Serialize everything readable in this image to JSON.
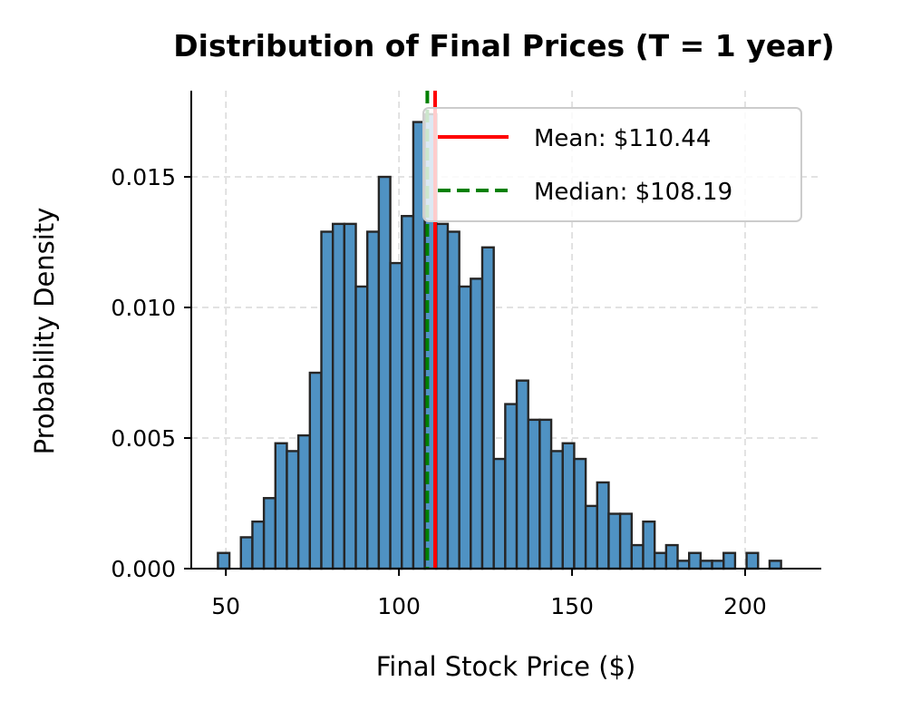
{
  "chart_data": {
    "type": "histogram",
    "title": "Distribution of Final Prices (T = 1 year)",
    "xlabel": "Final Stock Price ($)",
    "ylabel": "Probability Density",
    "xlim": [
      40,
      222
    ],
    "ylim": [
      0,
      0.0183
    ],
    "xticks": [
      50,
      100,
      150,
      200
    ],
    "xtick_labels": [
      "50",
      "100",
      "150",
      "200"
    ],
    "yticks": [
      0,
      0.005,
      0.01,
      0.015
    ],
    "ytick_labels": [
      "0.000",
      "0.005",
      "0.010",
      "0.015"
    ],
    "grid": true,
    "legend_position": "upper right",
    "bar_color": "#1f77b4",
    "bins": {
      "start": 47.7,
      "width": 3.32,
      "values": [
        0.0006,
        0.0,
        0.0012,
        0.0018,
        0.0027,
        0.0048,
        0.0045,
        0.0051,
        0.0075,
        0.0129,
        0.0132,
        0.0132,
        0.0108,
        0.0129,
        0.015,
        0.0117,
        0.0135,
        0.0171,
        0.0174,
        0.0132,
        0.0129,
        0.0108,
        0.0111,
        0.0123,
        0.0042,
        0.0063,
        0.0072,
        0.0057,
        0.0057,
        0.0045,
        0.0048,
        0.0042,
        0.0024,
        0.0033,
        0.0021,
        0.0021,
        0.0009,
        0.0018,
        0.0006,
        0.0009,
        0.0003,
        0.0006,
        0.0003,
        0.0003,
        0.0006,
        0.0,
        0.0006,
        0.0,
        0.0003
      ]
    },
    "lines": [
      {
        "label": "Mean: $110.44",
        "value": 110.44,
        "color": "#ff0000",
        "style": "solid"
      },
      {
        "label": "Median: $108.19",
        "value": 108.19,
        "color": "#008000",
        "style": "dashed"
      }
    ]
  }
}
